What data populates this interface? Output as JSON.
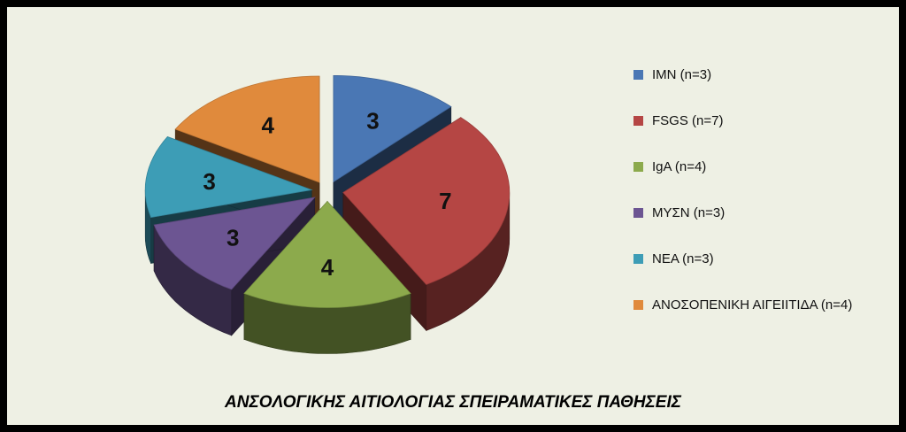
{
  "chart_data": {
    "type": "pie",
    "style": "3d-exploded",
    "title": "ΑΝΣΟΛΟΓΙΚΗΣ ΑΙΤΙΟΛΟΓΙΑΣ ΣΠΕΙΡΑΜΑΤΙΚΕΣ ΠΑΘΗΣΕΙΣ",
    "legend_position": "right",
    "slices": [
      {
        "label": "IMN (n=3)",
        "value": 3,
        "color": "#4a77b4"
      },
      {
        "label": "FSGS (n=7)",
        "value": 7,
        "color": "#b54644"
      },
      {
        "label": "IgA (n=4)",
        "value": 4,
        "color": "#8caa4c"
      },
      {
        "label": "ΜΥΣΝ (n=3)",
        "value": 3,
        "color": "#6c5592"
      },
      {
        "label": "NEA (n=3)",
        "value": 3,
        "color": "#3d9db6"
      },
      {
        "label": "ΑΝΟΣΟΠΕΝΙΚΗ ΑΙΓΕΙΙΤΙΔΑ (n=4)",
        "value": 4,
        "color": "#e08a3c"
      }
    ]
  }
}
